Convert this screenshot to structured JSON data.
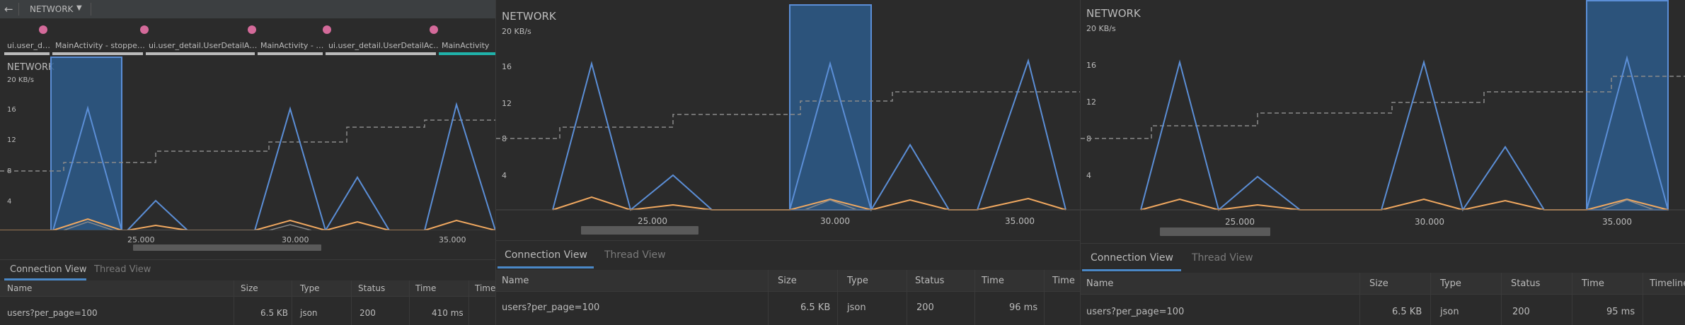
{
  "toolbar": {
    "title": "NETWORK",
    "back_icon": "back-arrow-icon",
    "dropdown_icon": "caret-down-icon"
  },
  "events": {
    "activities": [
      "ui.user_d…",
      "MainActivity - stoppe…",
      "ui.user_detail.UserDetailA…",
      "MainActivity - …",
      "ui.user_detail.UserDetailAc…",
      "MainActivity"
    ]
  },
  "monitor": {
    "label": "NETWORK",
    "scale": "20 KB/s",
    "yticks": [
      "16",
      "12",
      "8",
      "4"
    ]
  },
  "timeline": {
    "ticks": [
      "25.000",
      "30.000",
      "35.000"
    ]
  },
  "tabs": {
    "connection_view": "Connection View",
    "thread_view": "Thread View"
  },
  "table": {
    "headers": {
      "name": "Name",
      "size": "Size",
      "type": "Type",
      "status": "Status",
      "time": "Time",
      "timeline_short": "Time",
      "timeline": "Timeline"
    },
    "rows_p1": [
      {
        "name": "users?per_page=100",
        "size": "6.5 KB",
        "type": "json",
        "status": "200",
        "time": "410 ms"
      }
    ],
    "rows_p2": [
      {
        "name": "users?per_page=100",
        "size": "6.5 KB",
        "type": "json",
        "status": "200",
        "time": "96 ms"
      }
    ],
    "rows_p3": [
      {
        "name": "users?per_page=100",
        "size": "6.5 KB",
        "type": "json",
        "status": "200",
        "time": "95 ms"
      }
    ]
  },
  "colors": {
    "received": "#5b8ed6",
    "sent": "#f0a860",
    "connections": "#8a8a8a",
    "selection": "#2d5b8a",
    "accent": "#4a88c7",
    "event": "#d46a9a"
  }
}
